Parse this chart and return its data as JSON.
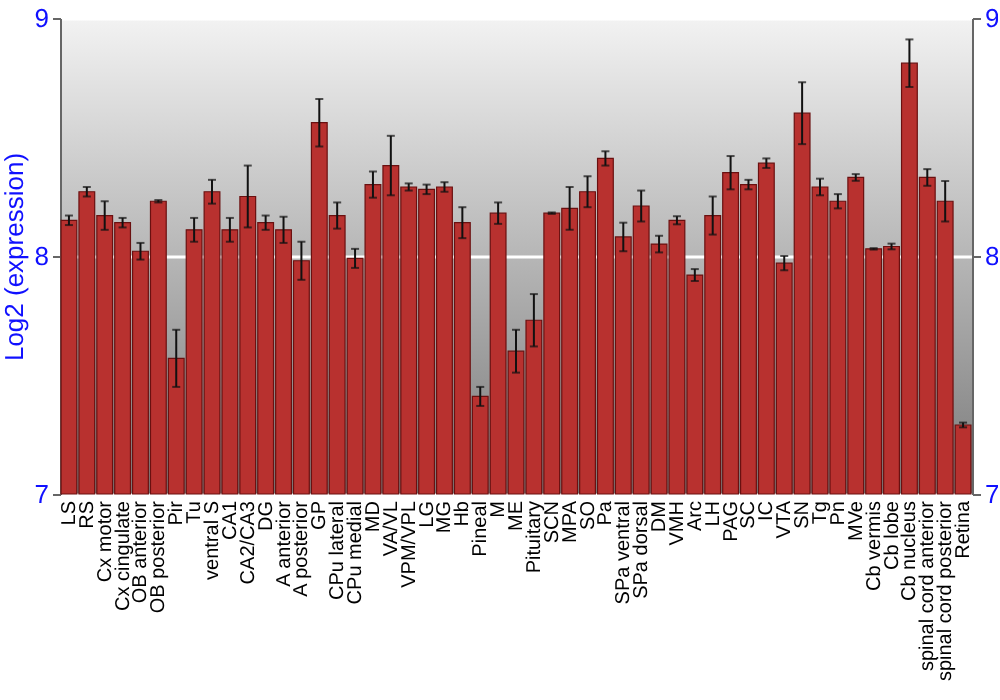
{
  "chart_data": {
    "type": "bar",
    "ylabel": "Log2 (expression)",
    "categories": [
      "LS",
      "RS",
      "Cx motor",
      "Cx cingulate",
      "OB anterior",
      "OB posterior",
      "Pir",
      "Tu",
      "ventral S",
      "CA1",
      "CA2/CA3",
      "DG",
      "A anterior",
      "A posterior",
      "GP",
      "CPu lateral",
      "CPu medial",
      "MD",
      "VA/VL",
      "VPM/VPL",
      "LG",
      "MG",
      "Hb",
      "Pineal",
      "M",
      "ME",
      "Pituitary",
      "SCN",
      "MPA",
      "SO",
      "Pa",
      "SPa ventral",
      "SPa dorsal",
      "DM",
      "VMH",
      "Arc",
      "LH",
      "PAG",
      "SC",
      "IC",
      "VTA",
      "SN",
      "Tg",
      "Pn",
      "MVe",
      "Cb vermis",
      "Cb lobe",
      "Cb nucleus",
      "spinal cord anterior",
      "spinal cord posterior",
      "Retina"
    ],
    "values": [
      8.15,
      8.27,
      8.17,
      8.14,
      8.02,
      8.23,
      7.57,
      8.11,
      8.27,
      8.11,
      8.25,
      8.14,
      8.11,
      7.98,
      8.56,
      8.17,
      7.99,
      8.3,
      8.38,
      8.29,
      8.28,
      8.29,
      8.14,
      7.41,
      8.18,
      7.6,
      7.73,
      8.18,
      8.2,
      8.27,
      8.41,
      8.08,
      8.21,
      8.05,
      8.15,
      7.92,
      8.17,
      8.35,
      8.3,
      8.39,
      7.97,
      8.6,
      8.29,
      8.23,
      8.33,
      8.03,
      8.04,
      8.81,
      8.33,
      8.23,
      7.29
    ],
    "errors": [
      0.02,
      0.02,
      0.06,
      0.02,
      0.035,
      0.005,
      0.12,
      0.05,
      0.05,
      0.05,
      0.13,
      0.03,
      0.055,
      0.08,
      0.1,
      0.055,
      0.04,
      0.055,
      0.125,
      0.015,
      0.02,
      0.02,
      0.065,
      0.04,
      0.045,
      0.09,
      0.11,
      0.003,
      0.09,
      0.065,
      0.03,
      0.06,
      0.065,
      0.035,
      0.017,
      0.025,
      0.08,
      0.07,
      0.02,
      0.02,
      0.03,
      0.13,
      0.035,
      0.03,
      0.014,
      0.003,
      0.012,
      0.1,
      0.035,
      0.085,
      0.01
    ],
    "color": "#b8312f",
    "ylim": [
      7,
      9
    ],
    "yticks": [
      7,
      8,
      9
    ],
    "y2lim": [
      7,
      9
    ],
    "y2ticks": [
      7,
      8,
      9
    ],
    "grid": "y"
  }
}
